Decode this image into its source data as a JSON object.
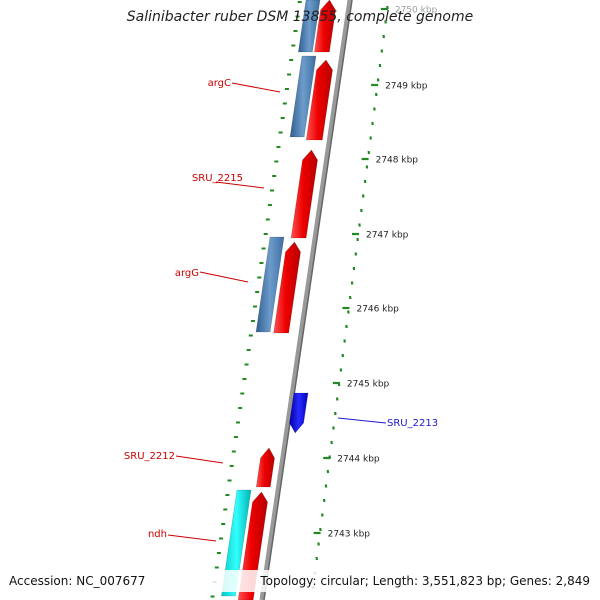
{
  "title": "Salinibacter ruber DSM 13855, complete genome",
  "accession": "Accession: NC_007677",
  "summary": "Topology: circular; Length: 3,551,823 bp; Genes: 2,849",
  "colors": {
    "forward_strand": "#ee1111",
    "reverse_strand": "#4a7fb5",
    "highlight_gene": "#1111ee",
    "cyan_gene": "#00dddd",
    "ruler": "#228822",
    "backbone": "#999999",
    "label_red": "#cc0000",
    "label_blue": "#1a1acc"
  },
  "ruler_ticks": [
    {
      "label": "2750 kbp",
      "faded": true
    },
    {
      "label": "2749 kbp",
      "faded": false
    },
    {
      "label": "2748 kbp",
      "faded": false
    },
    {
      "label": "2747 kbp",
      "faded": false
    },
    {
      "label": "2746 kbp",
      "faded": false
    },
    {
      "label": "2745 kbp",
      "faded": false
    },
    {
      "label": "2744 kbp",
      "faded": false
    },
    {
      "label": "2743 kbp",
      "faded": false
    }
  ],
  "gene_labels": [
    {
      "name": "argC",
      "strand": "left"
    },
    {
      "name": "SRU_2215",
      "strand": "left"
    },
    {
      "name": "argG",
      "strand": "left"
    },
    {
      "name": "SRU_2213",
      "strand": "right"
    },
    {
      "name": "SRU_2212",
      "strand": "left"
    },
    {
      "name": "ndh",
      "strand": "left"
    }
  ]
}
